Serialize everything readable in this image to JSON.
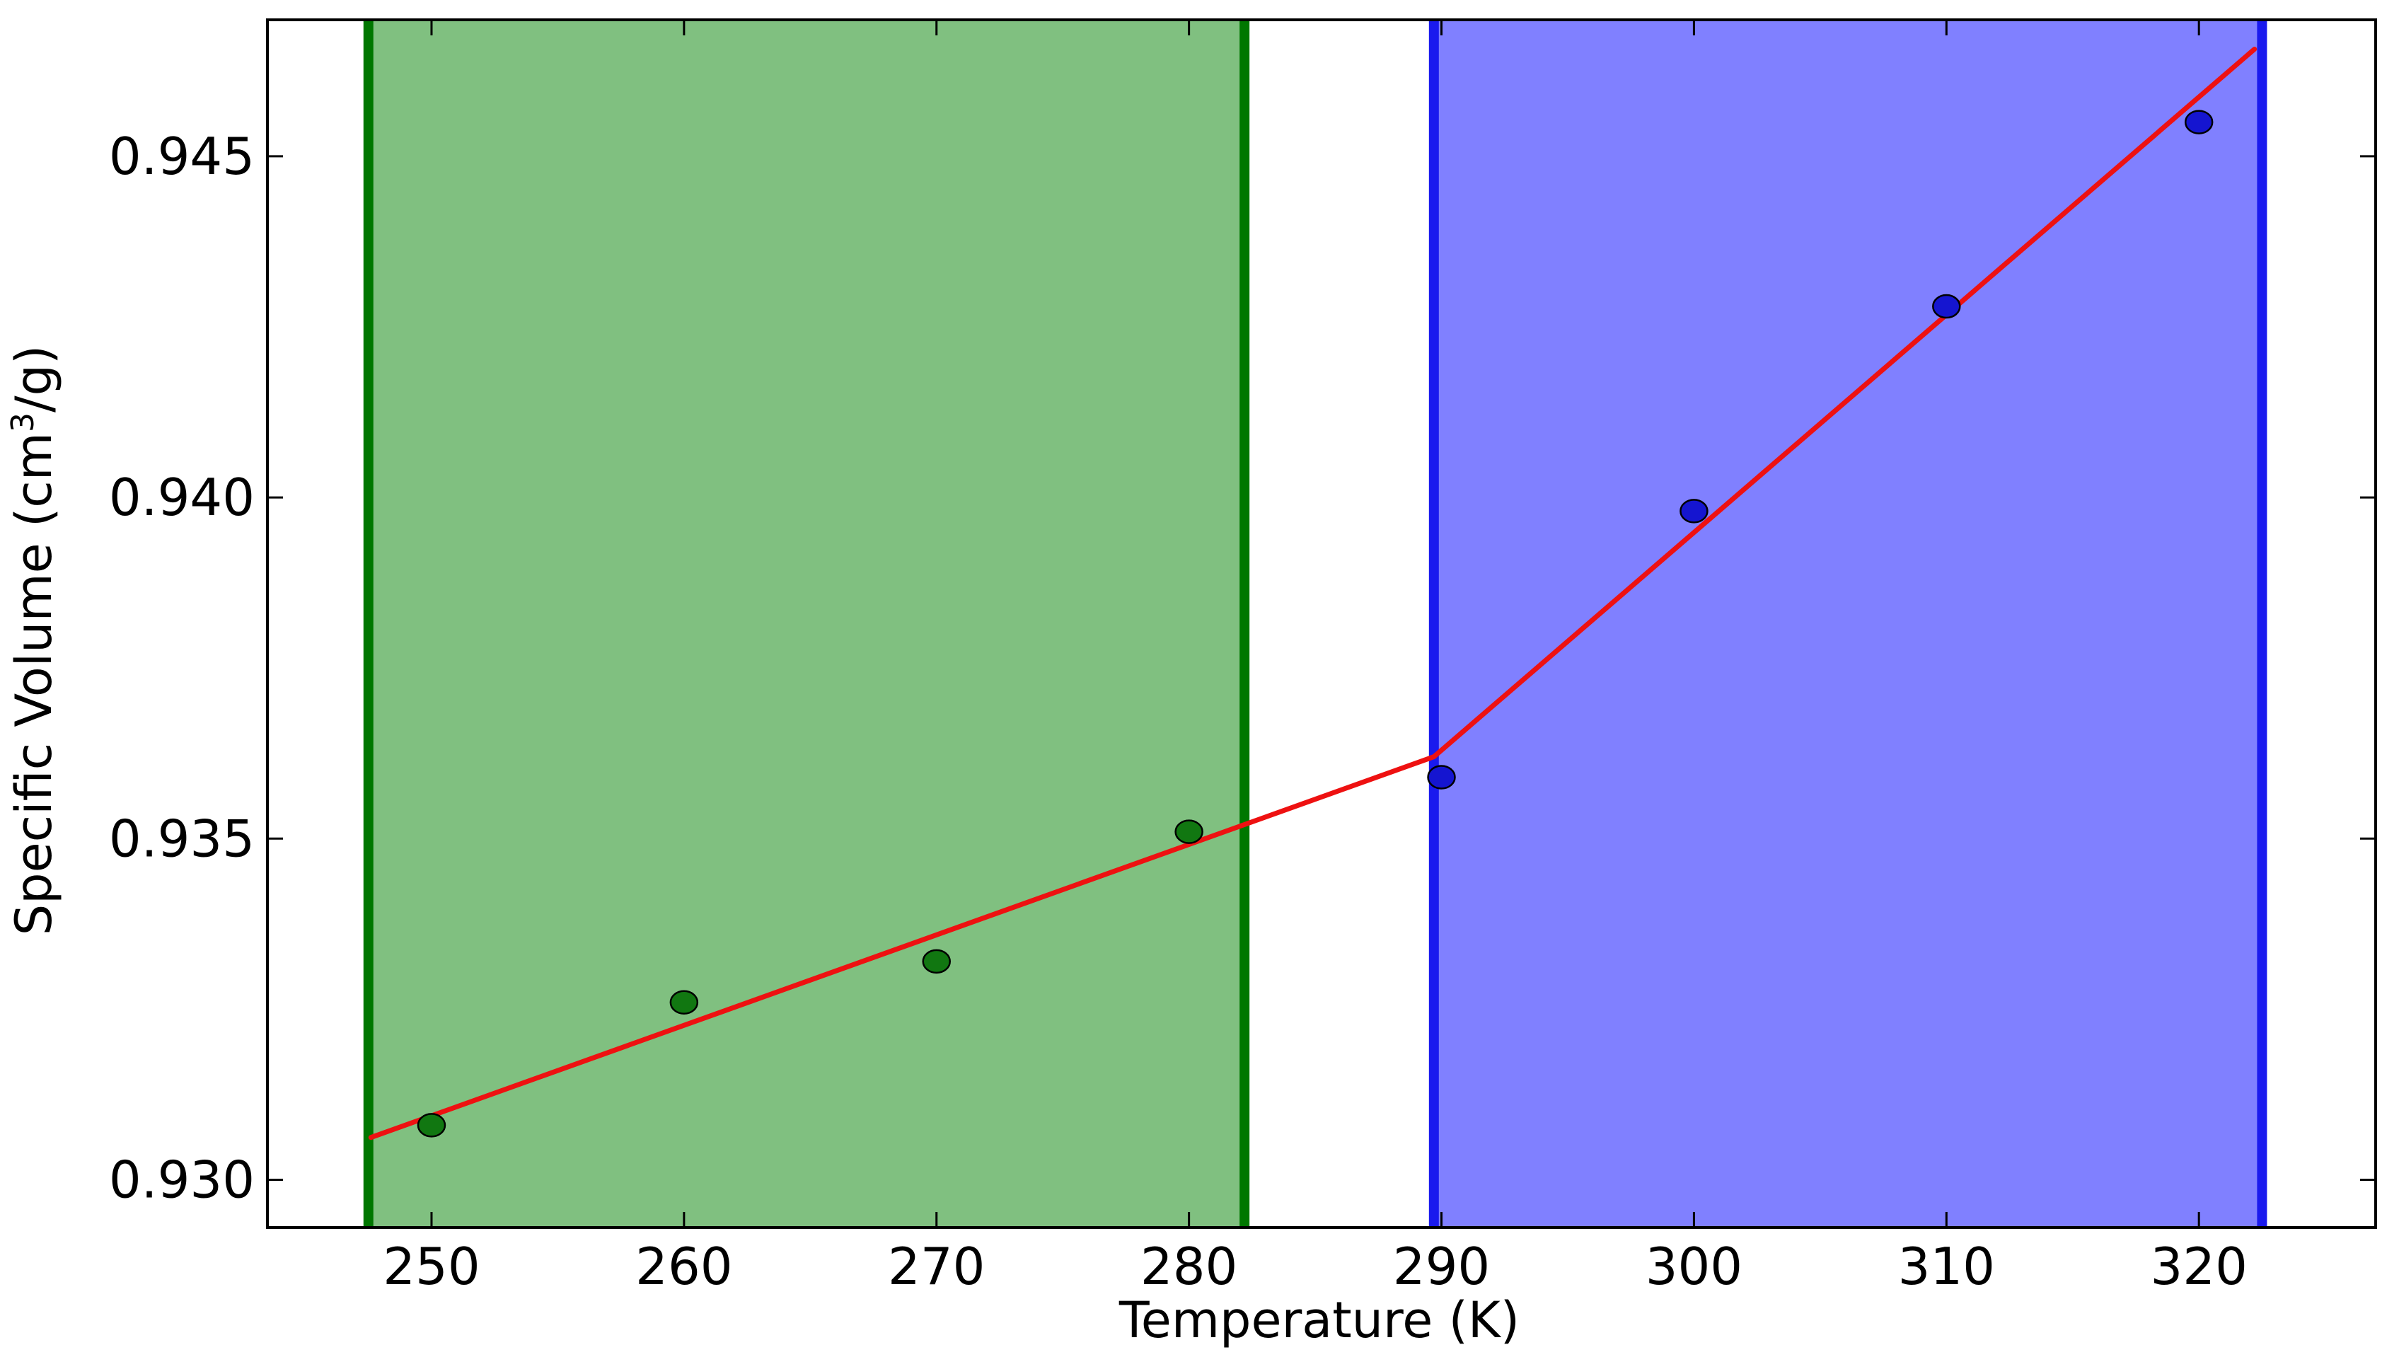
{
  "chart_data": {
    "type": "scatter",
    "xlabel": "Temperature (K)",
    "ylabel_main": "Specific Volume (cm",
    "ylabel_sup": "3",
    "ylabel_tail": "/g)",
    "xlim": [
      243.5,
      327.0
    ],
    "ylim": [
      0.9293,
      0.947
    ],
    "xticks": [
      250,
      260,
      270,
      280,
      290,
      300,
      310,
      320
    ],
    "yticks": [
      0.93,
      0.935,
      0.94,
      0.945
    ],
    "ytick_labels": [
      "0.930",
      "0.935",
      "0.940",
      "0.945"
    ],
    "grid": false,
    "regions": [
      {
        "x_start": 247.5,
        "x_end": 282.2,
        "fill": "#80c080",
        "edge": "#007700"
      },
      {
        "x_start": 289.7,
        "x_end": 322.5,
        "fill": "#8080ff",
        "edge": "#1a1aee"
      }
    ],
    "series": [
      {
        "color": "#117711",
        "x": [
          250,
          260,
          270,
          280
        ],
        "y": [
          0.9308,
          0.9326,
          0.9332,
          0.9351
        ]
      },
      {
        "color": "#1515d0",
        "x": [
          290,
          300,
          310,
          320
        ],
        "y": [
          0.9359,
          0.9398,
          0.9428,
          0.9455
        ]
      }
    ],
    "fit_lines": [
      {
        "color": "#ee1111",
        "x": [
          247.6,
          289.7
        ],
        "y": [
          0.93062,
          0.9362
        ]
      },
      {
        "color": "#ee1111",
        "x": [
          289.7,
          322.2
        ],
        "y": [
          0.9362,
          0.94657
        ]
      }
    ]
  }
}
